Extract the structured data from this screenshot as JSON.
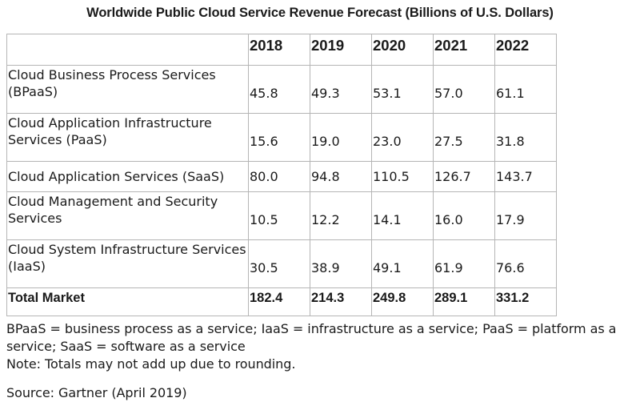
{
  "chart_data": {
    "type": "table",
    "title": "Worldwide Public Cloud Service Revenue Forecast (Billions of U.S. Dollars)",
    "columns": [
      "",
      "2018",
      "2019",
      "2020",
      "2021",
      "2022"
    ],
    "rows": [
      {
        "label": "Cloud Business Process Services (BPaaS)",
        "values": [
          "45.8",
          "49.3",
          "53.1",
          "57.0",
          "61.1"
        ]
      },
      {
        "label": "Cloud Application Infrastructure Services (PaaS)",
        "values": [
          "15.6",
          "19.0",
          "23.0",
          "27.5",
          "31.8"
        ]
      },
      {
        "label": "Cloud Application Services (SaaS)",
        "values": [
          "80.0",
          "94.8",
          "110.5",
          "126.7",
          "143.7"
        ]
      },
      {
        "label": "Cloud Management and Security Services",
        "values": [
          "10.5",
          "12.2",
          "14.1",
          "16.0",
          "17.9"
        ]
      },
      {
        "label": "Cloud System Infrastructure Services (IaaS)",
        "values": [
          "30.5",
          "38.9",
          "49.1",
          "61.9",
          "76.6"
        ]
      }
    ],
    "total": {
      "label": "Total Market",
      "values": [
        "182.4",
        "214.3",
        "249.8",
        "289.1",
        "331.2"
      ]
    }
  },
  "footnotes": {
    "abbreviations": "BPaaS = business process as a service; IaaS = infrastructure as a service; PaaS = platform as a service; SaaS = software as a service",
    "note": "Note: Totals may not add up due to rounding.",
    "source": "Source: Gartner (April 2019)"
  }
}
